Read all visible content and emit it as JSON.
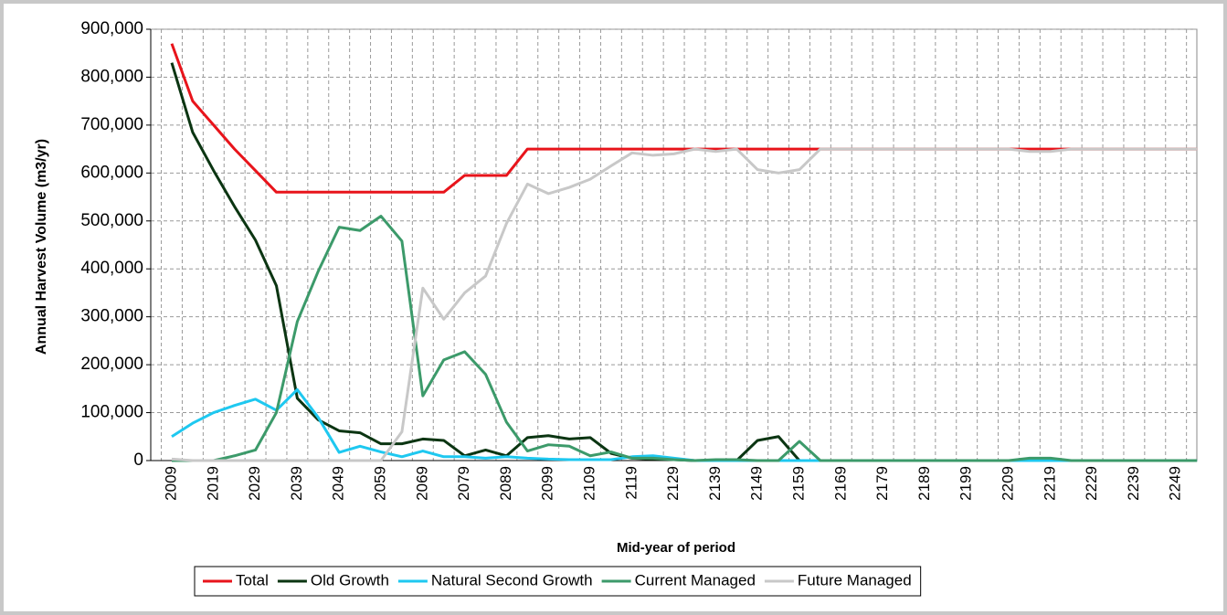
{
  "chart_data": {
    "type": "line",
    "y_label": "Annual Harvest Volume (m3/yr)",
    "x_label": "Mid-year of period",
    "categories": [
      "2009",
      null,
      "2019",
      null,
      "2029",
      null,
      "2039",
      null,
      "2049",
      null,
      "2059",
      null,
      "2069",
      null,
      "2079",
      null,
      "2089",
      null,
      "2099",
      null,
      "2109",
      null,
      "2119",
      null,
      "2129",
      null,
      "2139",
      null,
      "2149",
      null,
      "2159",
      null,
      "2169",
      null,
      "2179",
      null,
      "2189",
      null,
      "2199",
      null,
      "2209",
      null,
      "2219",
      null,
      "2229",
      null,
      "2239",
      null,
      "2249",
      null
    ],
    "ylim": [
      0,
      900000
    ],
    "yticks": [
      0,
      {
        "value": 100000,
        "label": "100,000"
      },
      {
        "value": 200000,
        "label": "200,000"
      },
      {
        "value": 300000,
        "label": "300,000"
      },
      {
        "value": 400000,
        "label": "400,000"
      },
      {
        "value": 500000,
        "label": "500,000"
      },
      {
        "value": 600000,
        "label": "600,000"
      },
      {
        "value": 700000,
        "label": "700,000"
      },
      {
        "value": 800000,
        "label": "800,000"
      },
      {
        "value": 900000,
        "label": "900,000"
      }
    ],
    "grid": true,
    "legend": "bottom",
    "series": [
      {
        "name": "Total",
        "color": "#e8141b",
        "values": [
          870000,
          750000,
          700000,
          650000,
          605000,
          560000,
          560000,
          560000,
          560000,
          560000,
          560000,
          560000,
          560000,
          560000,
          595000,
          595000,
          595000,
          650000,
          650000,
          650000,
          650000,
          650000,
          650000,
          650000,
          650000,
          650000,
          650000,
          650000,
          650000,
          650000,
          650000,
          650000,
          650000,
          650000,
          650000,
          650000,
          650000,
          650000,
          650000,
          650000,
          650000,
          650000,
          650000,
          650000,
          650000,
          650000,
          650000,
          650000,
          650000,
          650000
        ]
      },
      {
        "name": "Old Growth",
        "color": "#0b3512",
        "values": [
          830000,
          685000,
          605000,
          530000,
          460000,
          365000,
          130000,
          85000,
          62000,
          58000,
          35000,
          35000,
          45000,
          42000,
          10000,
          22000,
          10000,
          48000,
          52000,
          45000,
          48000,
          15000,
          5000,
          3000,
          2000,
          0,
          0,
          0,
          42000,
          50000,
          0,
          0,
          0,
          0,
          0,
          0,
          0,
          0,
          0,
          0,
          0,
          0,
          0,
          0,
          0,
          0,
          0,
          0,
          0,
          0
        ]
      },
      {
        "name": "Natural Second Growth",
        "color": "#1ec8f0",
        "values": [
          50000,
          78000,
          100000,
          115000,
          128000,
          105000,
          148000,
          90000,
          17000,
          30000,
          18000,
          8000,
          20000,
          8000,
          8000,
          5000,
          8000,
          5000,
          3000,
          2000,
          2000,
          2000,
          8000,
          10000,
          5000,
          0,
          0,
          0,
          0,
          0,
          0,
          0,
          0,
          0,
          0,
          0,
          0,
          0,
          0,
          0,
          0,
          0,
          0,
          0,
          0,
          0,
          0,
          0,
          0,
          0
        ]
      },
      {
        "name": "Current Managed",
        "color": "#3c9a6a",
        "values": [
          0,
          0,
          0,
          10000,
          22000,
          100000,
          290000,
          395000,
          487000,
          480000,
          510000,
          458000,
          135000,
          210000,
          227000,
          180000,
          80000,
          20000,
          33000,
          30000,
          10000,
          18000,
          5000,
          5000,
          2000,
          0,
          2000,
          2000,
          0,
          0,
          40000,
          0,
          0,
          0,
          0,
          0,
          0,
          0,
          0,
          0,
          0,
          5000,
          5000,
          0,
          0,
          0,
          0,
          0,
          0,
          0
        ]
      },
      {
        "name": "Future Managed",
        "color": "#c8c8c8",
        "values": [
          3000,
          0,
          0,
          0,
          0,
          0,
          0,
          0,
          0,
          0,
          0,
          60000,
          360000,
          295000,
          350000,
          385000,
          495000,
          577000,
          557000,
          570000,
          587000,
          615000,
          642000,
          637000,
          640000,
          650000,
          645000,
          650000,
          607000,
          600000,
          607000,
          650000,
          650000,
          650000,
          650000,
          650000,
          650000,
          650000,
          650000,
          650000,
          650000,
          645000,
          645000,
          650000,
          650000,
          650000,
          650000,
          650000,
          650000,
          650000
        ]
      }
    ]
  }
}
